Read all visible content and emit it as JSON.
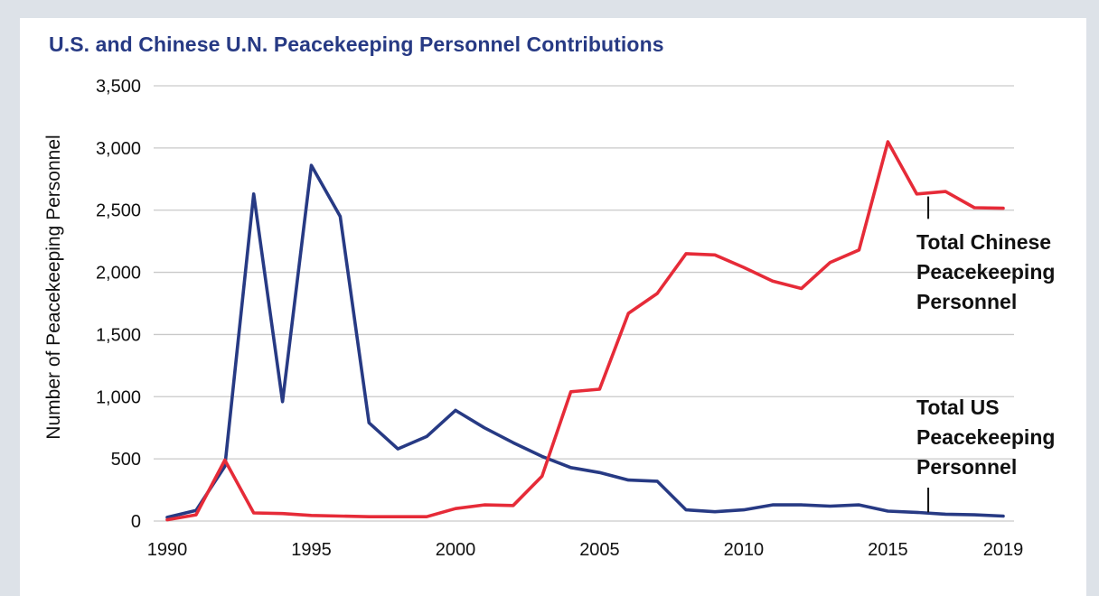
{
  "chart_data": {
    "type": "line",
    "title": "U.S. and Chinese U.N. Peacekeeping Personnel Contributions",
    "xlabel": "",
    "ylabel": "Number of Peacekeeping Personnel",
    "xlim": [
      1990,
      2019
    ],
    "ylim": [
      0,
      3500
    ],
    "x_ticks": [
      "1990",
      "1995",
      "2000",
      "2005",
      "2010",
      "2015",
      "2019"
    ],
    "y_ticks": [
      "0",
      "500",
      "1,000",
      "1,500",
      "2,000",
      "2,500",
      "3,000",
      "3,500"
    ],
    "grid": "horizontal",
    "x": [
      1990,
      1991,
      1992,
      1993,
      1994,
      1995,
      1996,
      1997,
      1998,
      1999,
      2000,
      2001,
      2002,
      2003,
      2004,
      2005,
      2006,
      2007,
      2008,
      2009,
      2010,
      2011,
      2012,
      2013,
      2014,
      2015,
      2016,
      2017,
      2018,
      2019
    ],
    "series": [
      {
        "name": "Total US Peacekeeping Personnel",
        "color": "#273a84",
        "label_lines": [
          "Total US",
          "Peacekeeping",
          "Personnel"
        ],
        "values": [
          30,
          85,
          440,
          2630,
          960,
          2860,
          2450,
          790,
          580,
          680,
          890,
          750,
          630,
          520,
          430,
          390,
          330,
          320,
          90,
          75,
          90,
          130,
          130,
          120,
          130,
          80,
          70,
          55,
          50,
          40
        ]
      },
      {
        "name": "Total Chinese Peacekeeping Personnel",
        "color": "#e62b38",
        "label_lines": [
          "Total Chinese",
          "Peacekeeping",
          "Personnel"
        ],
        "values": [
          10,
          50,
          490,
          65,
          60,
          45,
          40,
          35,
          35,
          35,
          100,
          130,
          125,
          360,
          1040,
          1060,
          1670,
          1830,
          2150,
          2140,
          2040,
          1930,
          1870,
          2080,
          2180,
          3050,
          2630,
          2650,
          2520,
          2515
        ]
      }
    ]
  }
}
